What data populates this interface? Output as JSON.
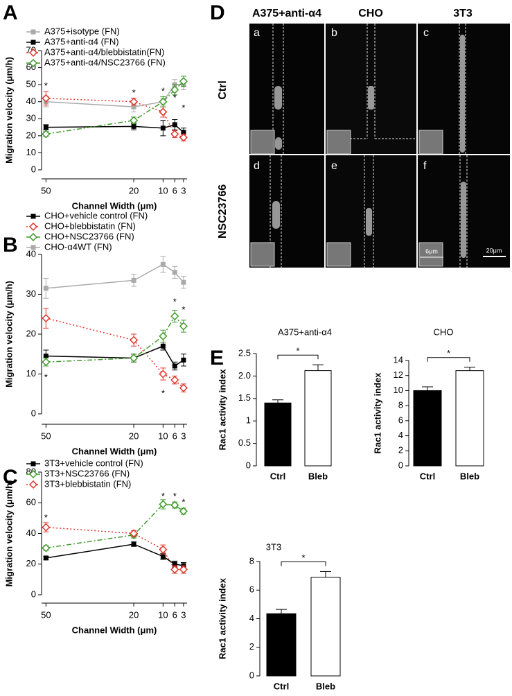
{
  "panel_letters": [
    "A",
    "B",
    "C",
    "D",
    "E"
  ],
  "micrographs": {
    "columns": [
      "A375+anti-α4",
      "CHO",
      "3T3"
    ],
    "rows": [
      "Ctrl",
      "NSC23766"
    ],
    "panels": [
      "a",
      "b",
      "c",
      "d",
      "e",
      "f"
    ],
    "scale_labels": [
      "6μm",
      "20μm"
    ]
  },
  "chart_data": [
    {
      "type": "line",
      "xlabel": "Channel Width (μm)",
      "ylabel": "Migration velocity (μm/h)",
      "x": [
        50,
        20,
        10,
        6,
        3
      ],
      "xlim": [
        51.5,
        1.8
      ],
      "xticks": [
        50,
        20,
        10,
        6,
        3
      ],
      "ylim": [
        0,
        70
      ],
      "yticks": [
        0,
        10,
        20,
        30,
        40,
        50,
        60,
        70
      ],
      "series": [
        {
          "name": "A375+isotype (FN)",
          "color": "#aaaaaa",
          "linestyle": "solid",
          "marker": "square",
          "values": [
            40,
            37,
            40,
            50,
            50
          ],
          "errors": [
            3,
            3,
            2,
            3,
            3
          ]
        },
        {
          "name": "A375+anti-α4 (FN)",
          "color": "#000000",
          "linestyle": "solid",
          "marker": "square",
          "values": [
            25,
            25.5,
            24.5,
            26.5,
            22
          ],
          "errors": [
            1.5,
            2,
            4.5,
            3,
            2.5
          ]
        },
        {
          "name": "A375+anti-α4/blebbistatin(FN)",
          "color": "#e0332a",
          "linestyle": "dotted",
          "marker": "diamond-open",
          "values": [
            42,
            40,
            34,
            21,
            19
          ],
          "errors": [
            4,
            2,
            3,
            2,
            2
          ]
        },
        {
          "name": "A375+anti-α4/NSC23766 (FN)",
          "color": "#3e9a2a",
          "linestyle": "dashdot",
          "marker": "diamond-open",
          "values": [
            21,
            29,
            40,
            47,
            52
          ],
          "errors": [
            1.5,
            2,
            3,
            3,
            3
          ]
        }
      ],
      "annotations": [
        {
          "text": "*",
          "x": 50,
          "y": 49
        },
        {
          "text": "*",
          "x": 20,
          "y": 45
        },
        {
          "text": "*",
          "x": 10,
          "y": 46
        },
        {
          "text": "*",
          "x": 6,
          "y": 42
        },
        {
          "text": "*",
          "x": 3,
          "y": 36
        }
      ]
    },
    {
      "type": "line",
      "xlabel": "Channel Width (μm)",
      "ylabel": "Migration velocity (μm/h)",
      "x": [
        50,
        20,
        10,
        6,
        3
      ],
      "xlim": [
        51.5,
        1.8
      ],
      "xticks": [
        50,
        20,
        10,
        6,
        3
      ],
      "ylim": [
        0,
        40
      ],
      "yticks": [
        0,
        10,
        20,
        30,
        40
      ],
      "series": [
        {
          "name": "CHO+vehicle control (FN)",
          "color": "#000000",
          "linestyle": "solid",
          "marker": "square",
          "values": [
            14.5,
            14,
            17,
            12,
            13.5
          ],
          "errors": [
            1.5,
            1,
            1,
            1,
            1.5
          ]
        },
        {
          "name": "CHO+blebbistatin (FN)",
          "color": "#e0332a",
          "linestyle": "dotted",
          "marker": "diamond-open",
          "values": [
            24,
            18.5,
            10,
            8.5,
            6.5
          ],
          "errors": [
            2.5,
            1.5,
            1.5,
            1,
            1
          ]
        },
        {
          "name": "CHO+NSC23766 (FN)",
          "color": "#3e9a2a",
          "linestyle": "dashdot",
          "marker": "diamond-open",
          "values": [
            13,
            14,
            19.5,
            24.5,
            22
          ],
          "errors": [
            1,
            1,
            1.5,
            1.5,
            1.5
          ]
        },
        {
          "name": "CHO-α4WT (FN)",
          "color": "#aaaaaa",
          "linestyle": "solid",
          "marker": "square",
          "values": [
            31.5,
            33.5,
            37.5,
            35.5,
            33
          ],
          "errors": [
            2.5,
            1.5,
            2,
            1.5,
            1.5
          ]
        }
      ],
      "annotations": [
        {
          "text": "*",
          "x": 50,
          "y": 9
        },
        {
          "text": "*",
          "x": 10,
          "y": 5
        },
        {
          "text": "*",
          "x": 6,
          "y": 28
        },
        {
          "text": "*",
          "x": 3,
          "y": 26
        }
      ]
    },
    {
      "type": "line",
      "xlabel": "Channel Width (μm)",
      "ylabel": "Migration velocity (μm/h)",
      "x": [
        50,
        20,
        10,
        6,
        3
      ],
      "xlim": [
        51.5,
        1.8
      ],
      "xticks": [
        50,
        20,
        10,
        6,
        3
      ],
      "ylim": [
        0,
        80
      ],
      "yticks": [
        0,
        20,
        40,
        60,
        80
      ],
      "series": [
        {
          "name": "3T3+vehicle control (FN)",
          "color": "#000000",
          "linestyle": "solid",
          "marker": "square",
          "values": [
            24,
            33,
            25,
            20,
            19
          ],
          "errors": [
            1,
            1.5,
            2,
            2,
            2
          ]
        },
        {
          "name": "3T3+NSC23766 (FN)",
          "color": "#3e9a2a",
          "linestyle": "dashdot",
          "marker": "diamond-open",
          "values": [
            30.5,
            39,
            59,
            58.5,
            54.5
          ],
          "errors": [
            1.5,
            2,
            3,
            2,
            2
          ]
        },
        {
          "name": "3T3+blebbistatin (FN)",
          "color": "#e0332a",
          "linestyle": "dotted",
          "marker": "diamond-open",
          "values": [
            44,
            40,
            29.5,
            16.5,
            16.5
          ],
          "errors": [
            3,
            2,
            3,
            2.5,
            2.5
          ]
        }
      ],
      "annotations": [
        {
          "text": "*",
          "x": 50,
          "y": 50
        },
        {
          "text": "*",
          "x": 10,
          "y": 64
        },
        {
          "text": "*",
          "x": 6,
          "y": 64
        },
        {
          "text": "*",
          "x": 3,
          "y": 60
        }
      ]
    },
    {
      "type": "bar",
      "title": "A375+anti-α4",
      "ylabel": "Rac1 activity index",
      "categories": [
        "Ctrl",
        "Bleb"
      ],
      "values": [
        1.4,
        2.12
      ],
      "errors": [
        0.07,
        0.13
      ],
      "colors": [
        "#000000",
        "#ffffff"
      ],
      "ylim": [
        0,
        2.5
      ],
      "yticks": [
        0,
        0.5,
        1,
        1.5,
        {
          "value": 2,
          "label": "2.0"
        },
        2.5
      ],
      "significance": "*"
    },
    {
      "type": "bar",
      "title": "CHO",
      "ylabel": "Rac1 activity index",
      "categories": [
        "Ctrl",
        "Bleb"
      ],
      "values": [
        10,
        12.65
      ],
      "errors": [
        0.5,
        0.45
      ],
      "colors": [
        "#000000",
        "#ffffff"
      ],
      "ylim": [
        0,
        14
      ],
      "yticks": [
        0,
        2,
        4,
        6,
        8,
        10,
        12,
        14
      ],
      "significance": "*"
    },
    {
      "type": "bar",
      "title": "3T3",
      "ylabel": "Rac1 activity index",
      "categories": [
        "Ctrl",
        "Bleb"
      ],
      "values": [
        4.35,
        6.9
      ],
      "errors": [
        0.3,
        0.4
      ],
      "colors": [
        "#000000",
        "#ffffff"
      ],
      "ylim": [
        0,
        8
      ],
      "yticks": [
        0,
        2,
        4,
        6,
        8
      ],
      "significance": "*"
    }
  ]
}
